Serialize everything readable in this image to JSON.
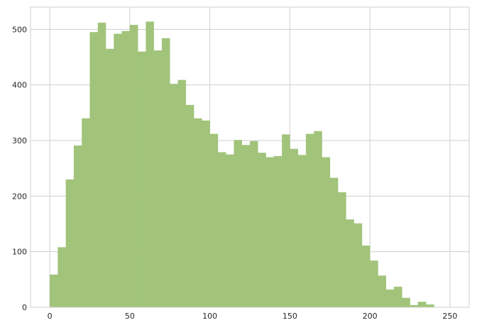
{
  "chart_data": {
    "type": "bar",
    "title": "",
    "xlabel": "",
    "ylabel": "",
    "xlim": [
      -12,
      262
    ],
    "ylim": [
      0,
      540
    ],
    "grid": true,
    "bar_color": "#a1c47a",
    "grid_color": "#cfcfcf",
    "spine_color": "#cfcfcf",
    "x_ticks": [
      0,
      50,
      100,
      150,
      200,
      250
    ],
    "x_tick_labels": [
      "0",
      "50",
      "100",
      "150",
      "200",
      "250"
    ],
    "y_ticks": [
      0,
      100,
      200,
      300,
      400,
      500
    ],
    "y_tick_labels": [
      "0",
      "100",
      "200",
      "300",
      "400",
      "500"
    ],
    "bin_start": 0,
    "bin_width": 5,
    "values": [
      59,
      108,
      230,
      291,
      340,
      495,
      512,
      465,
      492,
      497,
      508,
      460,
      514,
      462,
      484,
      402,
      409,
      364,
      340,
      336,
      312,
      279,
      275,
      301,
      292,
      299,
      278,
      270,
      272,
      311,
      285,
      274,
      312,
      317,
      270,
      233,
      207,
      158,
      151,
      111,
      84,
      57,
      32,
      37,
      17,
      4,
      10,
      5
    ]
  }
}
